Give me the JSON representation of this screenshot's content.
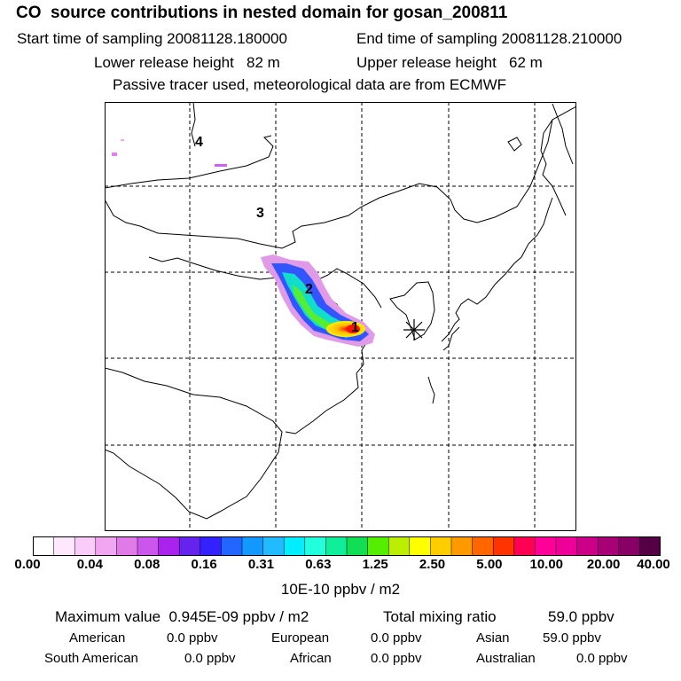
{
  "header": {
    "title": "CO  source contributions in nested domain for gosan_200811",
    "start_label": "Start time of sampling 20081128.180000",
    "end_label": "End time of sampling 20081128.210000",
    "lower_label": "Lower release height   82 m",
    "upper_label": "Upper release height   62 m",
    "note": "Passive tracer used, meteorological data are from ECMWF"
  },
  "map": {
    "region_labels": [
      "1",
      "2",
      "3",
      "4"
    ],
    "receptor_symbol": "gosan-receptor-asterisk"
  },
  "colorbar": {
    "tick_labels": [
      "0.00",
      "0.04",
      "0.08",
      "0.16",
      "0.31",
      "0.63",
      "1.25",
      "2.50",
      "5.00",
      "10.00",
      "20.00",
      "40.00"
    ],
    "unit": "10E-10 ppbv / m2",
    "colors": [
      "#ffffff",
      "#fde8fd",
      "#f9ccf9",
      "#f2a6f2",
      "#e07ae7",
      "#cc55ee",
      "#aa22ee",
      "#6622ee",
      "#3322ff",
      "#2266ff",
      "#1199ff",
      "#22bbff",
      "#00eeff",
      "#22ffdd",
      "#11ee99",
      "#11dd55",
      "#55ee00",
      "#bbee00",
      "#ffff00",
      "#ffcc00",
      "#ff9900",
      "#ff6600",
      "#ff3300",
      "#ff0055",
      "#ff0099",
      "#ee0099",
      "#cc0088",
      "#aa0077",
      "#880066",
      "#550044"
    ]
  },
  "stats": {
    "max_label": "Maximum value  0.945E-09 ppbv / m2",
    "total_label": "Total mixing ratio",
    "total_value": "59.0 ppbv",
    "american_label": "American",
    "american_value": "0.0 ppbv",
    "european_label": "European",
    "european_value": "0.0 ppbv",
    "asian_label": "Asian",
    "asian_value": "59.0 ppbv",
    "southamerican_label": "South American",
    "southamerican_value": "0.0 ppbv",
    "african_label": "African",
    "african_value": "0.0 ppbv",
    "australian_label": "Australian",
    "australian_value": "0.0 ppbv"
  }
}
